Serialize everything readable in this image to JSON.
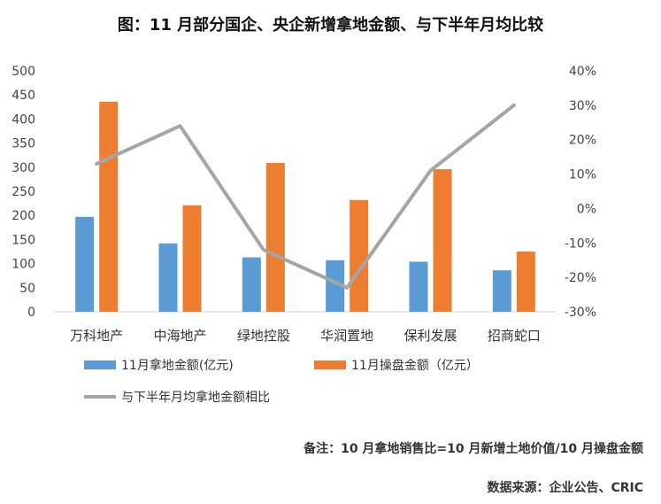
{
  "title": "图：11 月部分国企、央企新增拿地金额、与下半年月均比较",
  "note": "备注：10 月拿地销售比=10 月新增土地价值/10 月操盘金额",
  "source": "数据来源：企业公告、CRIC",
  "chart_data": {
    "type": "bar",
    "categories": [
      "万科地产",
      "中海地产",
      "绿地控股",
      "华润置地",
      "保利发展",
      "招商蛇口"
    ],
    "series": [
      {
        "name": "11月拿地金额(亿元)",
        "type": "bar",
        "axis": "left",
        "color": "#5b9bd5",
        "values": [
          197,
          142,
          113,
          107,
          104,
          86
        ]
      },
      {
        "name": "11月操盘金额（亿元）",
        "type": "bar",
        "axis": "left",
        "color": "#ed7d31",
        "values": [
          436,
          221,
          309,
          232,
          296,
          125
        ]
      },
      {
        "name": "与下半年月均拿地金额相比",
        "type": "line",
        "axis": "right",
        "color": "#a5a5a5",
        "values": [
          13,
          24,
          -12,
          -23,
          11,
          30
        ]
      }
    ],
    "y_left": {
      "min": 0,
      "max": 500,
      "ticks": [
        "0",
        "50",
        "100",
        "150",
        "200",
        "250",
        "300",
        "350",
        "400",
        "450",
        "500"
      ]
    },
    "y_right": {
      "min": -30,
      "max": 40,
      "unit": "%",
      "ticks": [
        "-30%",
        "-20%",
        "-10%",
        "0%",
        "10%",
        "20%",
        "30%",
        "40%"
      ]
    },
    "grid": false,
    "legend_position": "bottom"
  }
}
